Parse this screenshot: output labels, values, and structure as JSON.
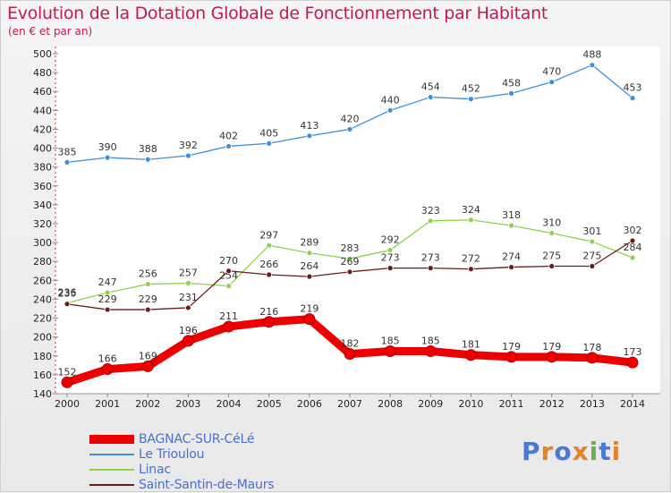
{
  "header": {
    "title": "Evolution de la Dotation Globale de Fonctionnement par Habitant",
    "subtitle": "(en € et par an)"
  },
  "chart_data": {
    "type": "line",
    "x": [
      2000,
      2001,
      2002,
      2003,
      2004,
      2005,
      2006,
      2007,
      2008,
      2009,
      2010,
      2011,
      2012,
      2013,
      2014
    ],
    "ylim": [
      140,
      500
    ],
    "yticks": [
      140,
      160,
      180,
      200,
      220,
      240,
      260,
      280,
      300,
      320,
      340,
      360,
      380,
      400,
      420,
      440,
      460,
      480,
      500
    ],
    "grid": false,
    "legend_position": "bottom-left",
    "series": [
      {
        "name": "BAGNAC-SUR-CéLé",
        "color": "#ee0000",
        "values": [
          152,
          166,
          169,
          196,
          211,
          216,
          219,
          182,
          185,
          185,
          181,
          179,
          179,
          178,
          173
        ]
      },
      {
        "name": "Le Trioulou",
        "color": "#3e8fd8",
        "values": [
          385,
          390,
          388,
          392,
          402,
          405,
          413,
          420,
          440,
          454,
          452,
          458,
          470,
          488,
          453
        ]
      },
      {
        "name": "Linac",
        "color": "#8fd24f",
        "values": [
          236,
          247,
          256,
          257,
          254,
          297,
          289,
          283,
          292,
          323,
          324,
          318,
          310,
          301,
          284
        ]
      },
      {
        "name": "Saint-Santin-de-Maurs",
        "color": "#6b1c1c",
        "values": [
          235,
          229,
          229,
          231,
          270,
          266,
          264,
          269,
          273,
          273,
          272,
          274,
          275,
          275,
          302
        ]
      }
    ]
  },
  "logo": {
    "text": "Proxiti",
    "colors": [
      "#4a7ad6",
      "#e8822a",
      "#4a7ad6",
      "#e8822a",
      "#6ab04c",
      "#4a7ad6",
      "#e8822a"
    ]
  }
}
